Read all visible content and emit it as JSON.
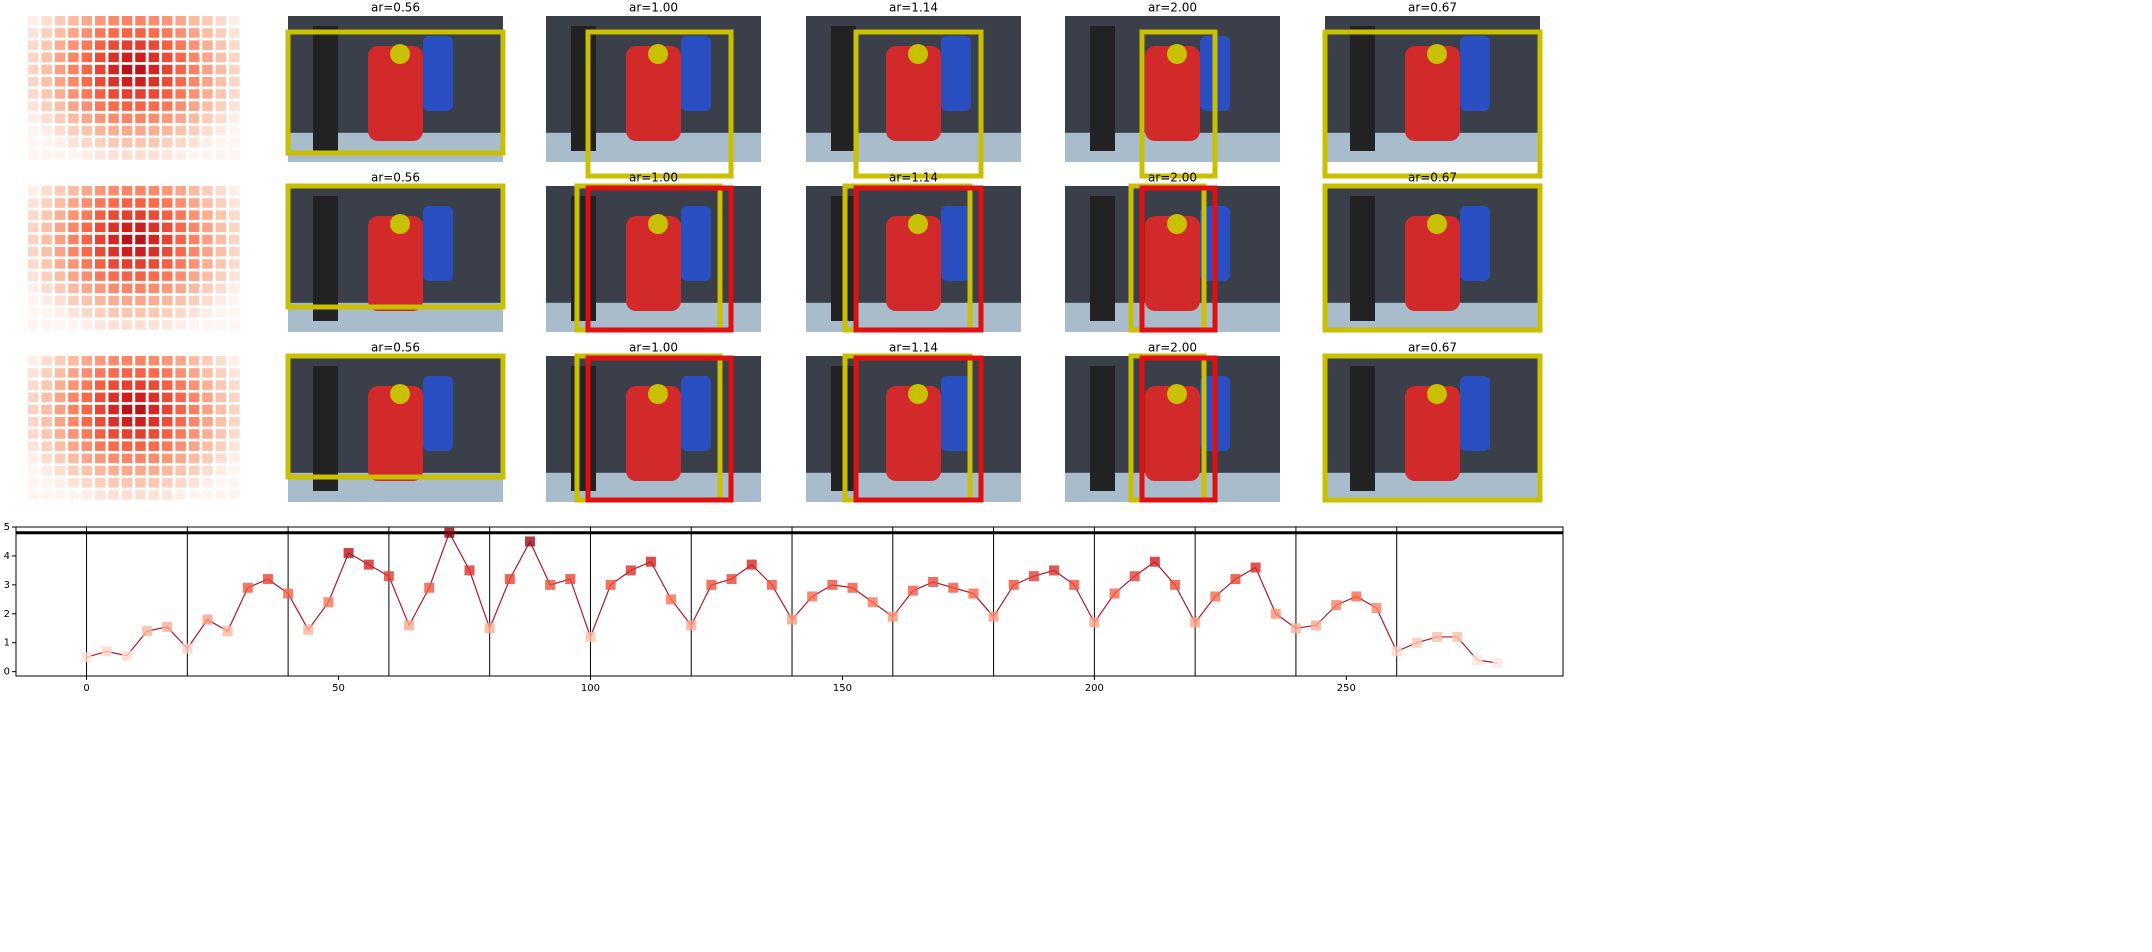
{
  "panels": [
    [
      "ar=0.56",
      "ar=1.00",
      "ar=1.14",
      "ar=2.00",
      "ar=0.67"
    ],
    [
      "ar=0.56",
      "ar=1.00",
      "ar=1.14",
      "ar=2.00",
      "ar=0.67"
    ],
    [
      "ar=0.56",
      "ar=1.00",
      "ar=1.14",
      "ar=2.00",
      "ar=0.67"
    ]
  ],
  "chart_data": {
    "type": "line",
    "x": [
      0,
      4,
      8,
      12,
      16,
      20,
      24,
      28,
      32,
      36,
      40,
      44,
      48,
      52,
      56,
      60,
      64,
      68,
      72,
      76,
      80,
      84,
      88,
      92,
      96,
      100,
      104,
      108,
      112,
      116,
      120,
      124,
      128,
      132,
      136,
      140,
      144,
      148,
      152,
      156,
      160,
      164,
      168,
      172,
      176,
      180,
      184,
      188,
      192,
      196,
      200,
      204,
      208,
      212,
      216,
      220,
      224,
      228,
      232,
      236,
      240,
      244,
      248,
      252,
      256,
      260,
      264,
      268,
      272,
      276,
      280
    ],
    "values": [
      0.5,
      0.7,
      0.55,
      1.4,
      1.55,
      0.8,
      1.8,
      1.4,
      2.9,
      3.2,
      2.7,
      1.45,
      2.4,
      4.1,
      3.7,
      3.3,
      1.6,
      2.9,
      4.8,
      3.5,
      1.5,
      3.2,
      4.5,
      3.0,
      3.2,
      1.2,
      3.0,
      3.5,
      3.8,
      2.5,
      1.6,
      3.0,
      3.2,
      3.7,
      3.0,
      1.8,
      2.6,
      3.0,
      2.9,
      2.4,
      1.9,
      2.8,
      3.1,
      2.9,
      2.7,
      1.9,
      3.0,
      3.3,
      3.5,
      3.0,
      1.7,
      2.7,
      3.3,
      3.8,
      3.0,
      1.7,
      2.6,
      3.2,
      3.6,
      2.0,
      1.5,
      1.6,
      2.3,
      2.6,
      2.2,
      0.7,
      1.0,
      1.2,
      1.2,
      0.4,
      0.3
    ],
    "color": "#b2182b",
    "hline": 4.8,
    "vlines": [
      0,
      20,
      40,
      60,
      80,
      100,
      120,
      140,
      160,
      180,
      200,
      220,
      240,
      260
    ],
    "xlim": [
      -14,
      293
    ],
    "ylim": [
      -0.15,
      5.0
    ],
    "xticks": [
      0,
      50,
      100,
      150,
      200,
      250
    ],
    "yticks": [
      0,
      1,
      2,
      3,
      4,
      5
    ]
  }
}
